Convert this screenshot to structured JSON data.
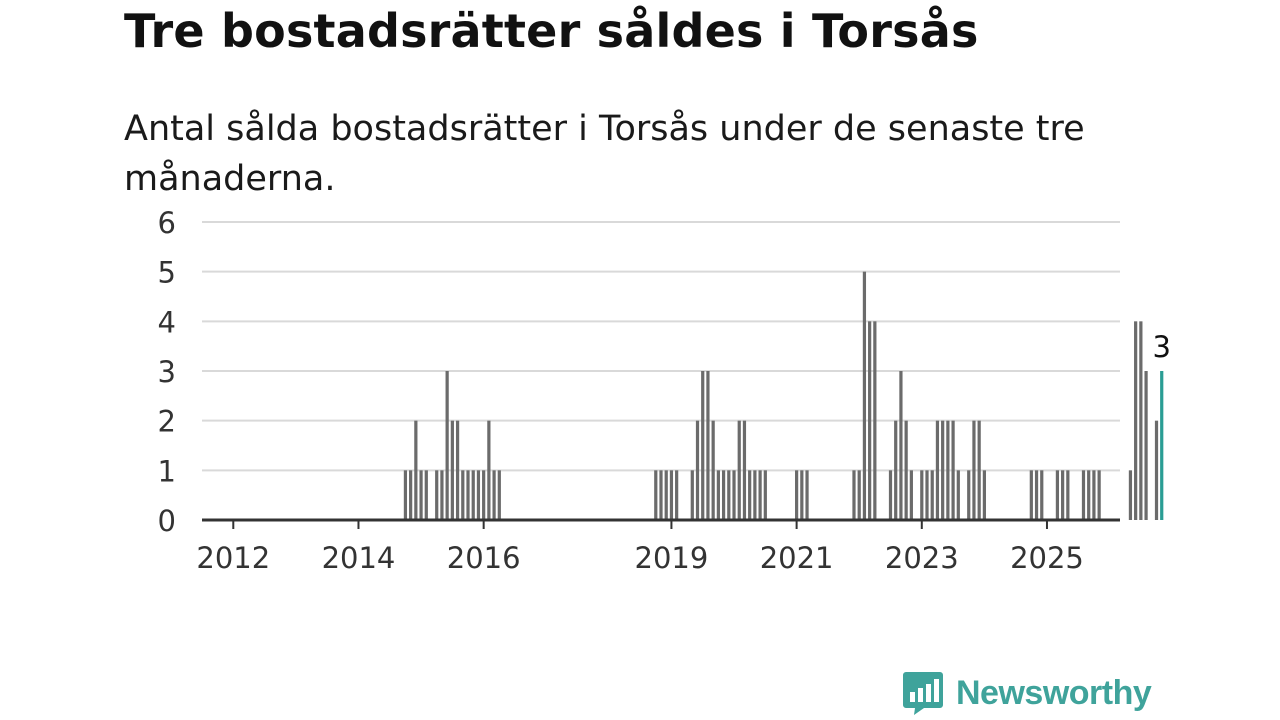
{
  "page": {
    "title": "Tre bostadsrätter såldes i Torsås",
    "subtitle": "Antal sålda bostadsrätter i Torsås under de senaste tre månaderna."
  },
  "brand": {
    "name": "Newsworthy",
    "icon": "newsworthy-chart-bubble-icon",
    "color": "#3fa39b"
  },
  "chart_data": {
    "type": "bar",
    "x_unit": "months",
    "x_start": "2011-07",
    "xlim": [
      "2011-07",
      "2026-03"
    ],
    "ylim": [
      0,
      6
    ],
    "yticks": [
      0,
      1,
      2,
      3,
      4,
      5,
      6
    ],
    "xticks": [
      {
        "label": "2012",
        "at": "2012-01"
      },
      {
        "label": "2014",
        "at": "2014-01"
      },
      {
        "label": "2016",
        "at": "2016-01"
      },
      {
        "label": "2019",
        "at": "2019-01"
      },
      {
        "label": "2021",
        "at": "2021-01"
      },
      {
        "label": "2023",
        "at": "2023-01"
      },
      {
        "label": "2025",
        "at": "2025-01"
      }
    ],
    "grid": true,
    "bar_color": "#6b6b6b",
    "highlight_color": "#2a9d94",
    "highlight_label": "3",
    "series": [
      {
        "start": "2014-10",
        "values": [
          1,
          1,
          2,
          1,
          1,
          0,
          1,
          1,
          3,
          2,
          2,
          1,
          1,
          1,
          1,
          1,
          2,
          1,
          1
        ]
      },
      {
        "start": "2018-10",
        "values": [
          1,
          1,
          1,
          1,
          1,
          0,
          0,
          1,
          2,
          3,
          3,
          2,
          1,
          1,
          1,
          1,
          2,
          2,
          1,
          1,
          1,
          1,
          0,
          0,
          0,
          0,
          0,
          1,
          1,
          1,
          0,
          0,
          0,
          0,
          0,
          0,
          0,
          0,
          1,
          1,
          5,
          4,
          4,
          0,
          0,
          1,
          2,
          3,
          2,
          1,
          0,
          1,
          1,
          1,
          2,
          2,
          2,
          2,
          1,
          0,
          1,
          2,
          2,
          1,
          0,
          0,
          0,
          0,
          0,
          0,
          0,
          0,
          1,
          1,
          1,
          0,
          0,
          1,
          1,
          1,
          0,
          0,
          1,
          1,
          1,
          1,
          0,
          0,
          0,
          0,
          0,
          1,
          4,
          4,
          3,
          0,
          2,
          3
        ]
      }
    ]
  }
}
